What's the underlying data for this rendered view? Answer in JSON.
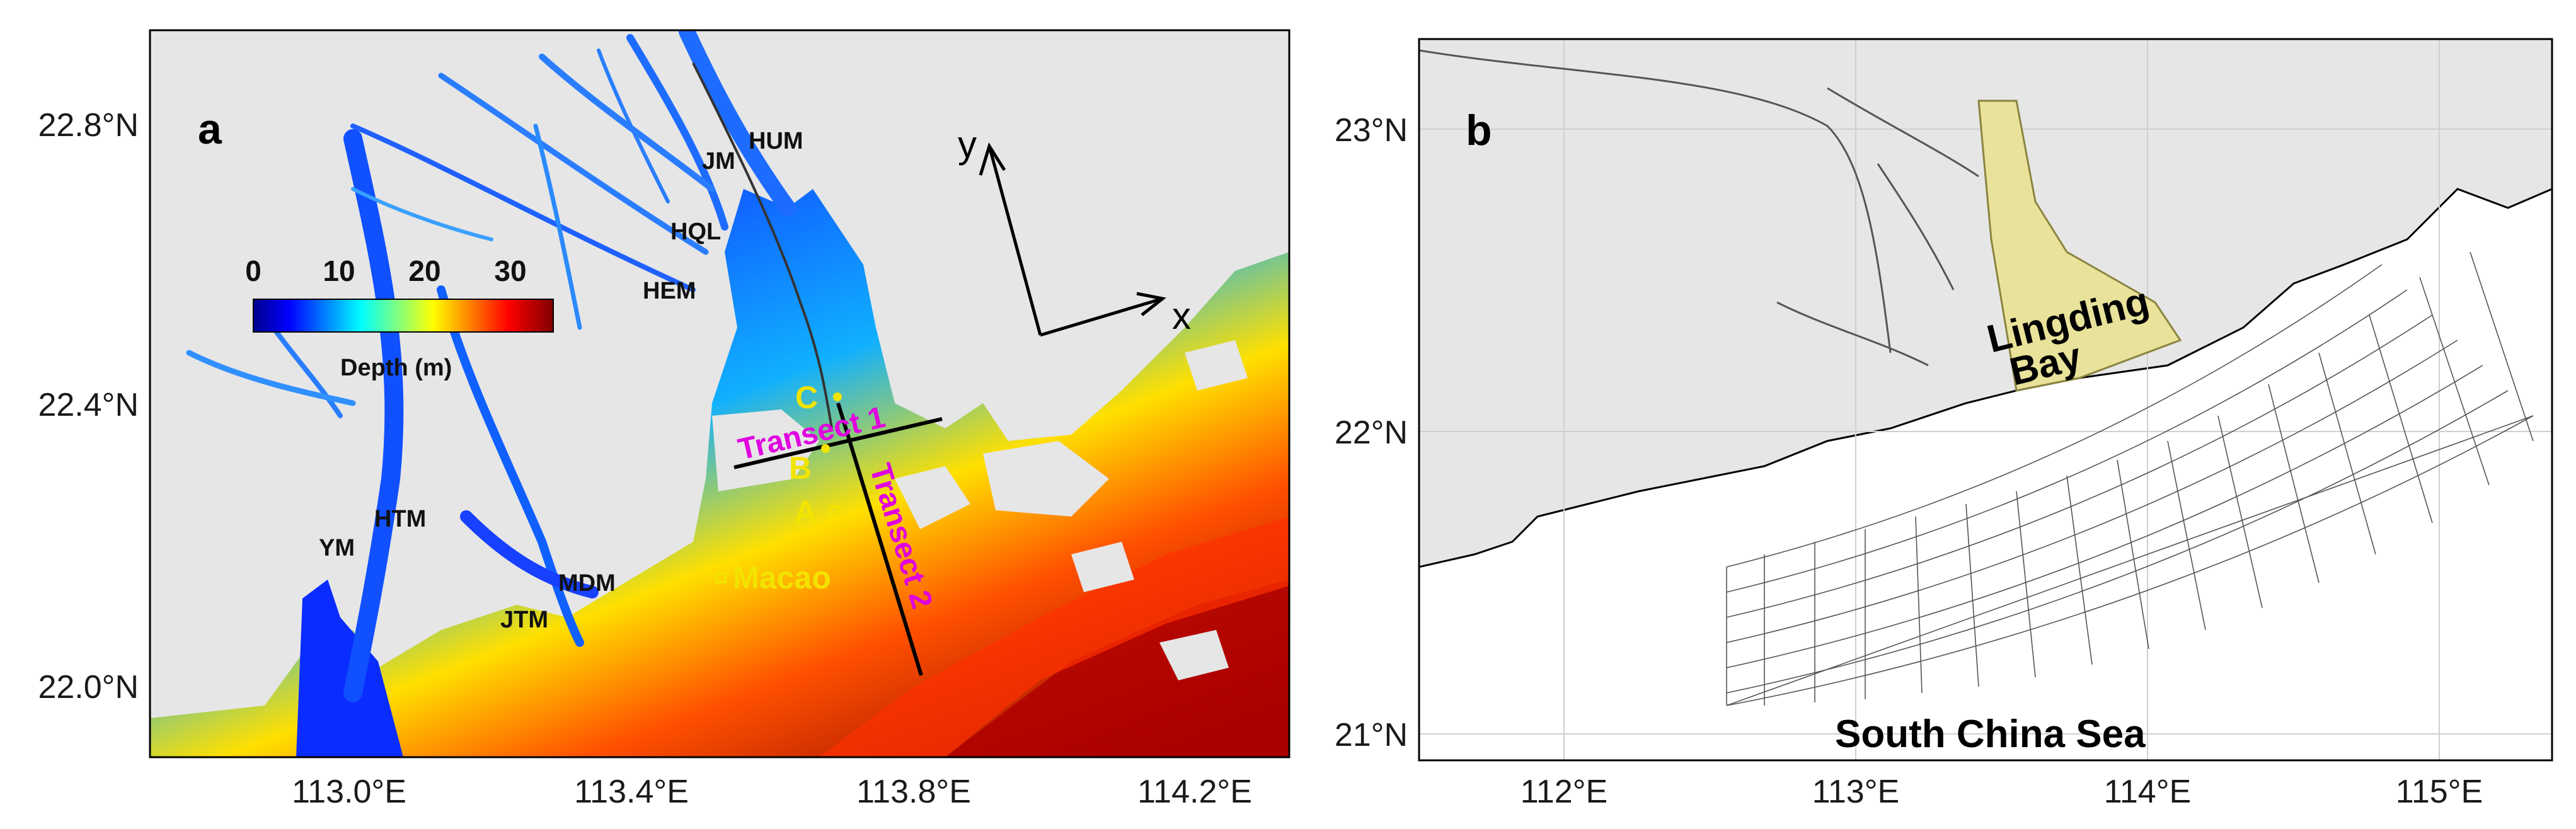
{
  "panel_a": {
    "label": "a",
    "lat_ticks": [
      "22.8°N",
      "22.4°N",
      "22.0°N"
    ],
    "lon_ticks": [
      "113.0°E",
      "113.4°E",
      "113.8°E",
      "114.2°E"
    ],
    "colorbar": {
      "ticks": [
        "0",
        "10",
        "20",
        "30"
      ],
      "title": "Depth (m)",
      "colormap": "jet",
      "range": [
        0,
        35
      ]
    },
    "sites": {
      "hum": "HUM",
      "jm": "JM",
      "hql": "HQL",
      "hem": "HEM",
      "htm": "HTM",
      "ym": "YM",
      "mdm": "MDM",
      "jtm": "JTM"
    },
    "stations": {
      "c": "C",
      "b": "B",
      "a": "A",
      "macao": "Macao"
    },
    "transects": {
      "t1": "Transect 1",
      "t2": "Transect 2"
    },
    "axes": {
      "x": "x",
      "y": "y"
    },
    "colors": {
      "land": "#e6e6e6",
      "station": "#f2e400",
      "transect_label": "#e000e0"
    }
  },
  "panel_b": {
    "label": "b",
    "lat_ticks": [
      "23°N",
      "22°N",
      "21°N"
    ],
    "lon_ticks": [
      "112°E",
      "113°E",
      "114°E",
      "115°E"
    ],
    "region_label_1": "Lingding",
    "region_label_2": "Bay",
    "sea_label": "South  China  Sea",
    "colors": {
      "land": "#e6e6e6",
      "bay_grid": "#e8e29a",
      "grid": "#555555"
    }
  }
}
